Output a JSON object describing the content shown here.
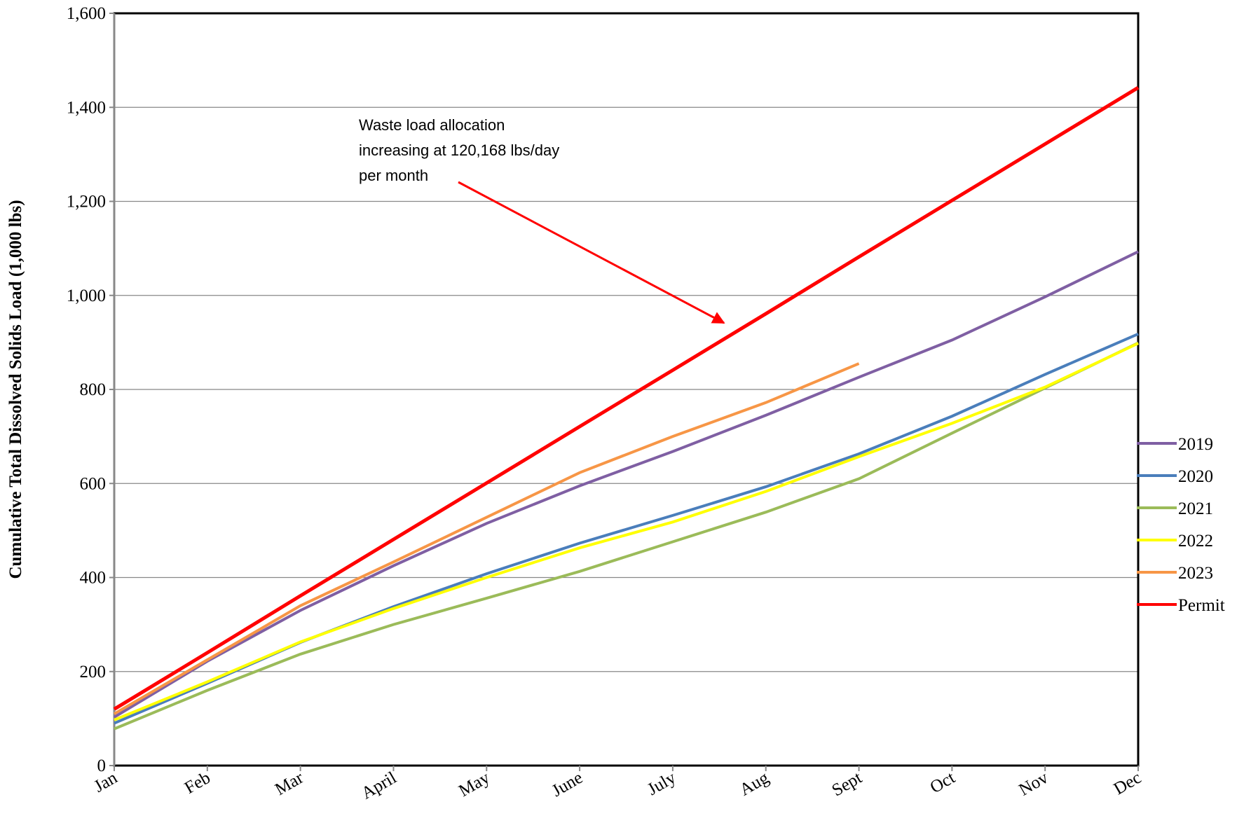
{
  "chart_data": {
    "type": "line",
    "y_label": "Cumulative Total Dissolved Solids Load (1,000 lbs)",
    "annotation": [
      "Waste load allocation",
      "increasing at 120,168 lbs/day",
      "per month"
    ],
    "categories": [
      "Jan",
      "Feb",
      "Mar",
      "April",
      "May",
      "June",
      "July",
      "Aug",
      "Sept",
      "Oct",
      "Nov",
      "Dec"
    ],
    "ylim": [
      0,
      1600
    ],
    "yticks": [
      0,
      200,
      400,
      600,
      800,
      {
        "value": 1000,
        "label": "1,000"
      },
      {
        "value": 1200,
        "label": "1,200"
      },
      {
        "value": 1400,
        "label": "1,400"
      },
      {
        "value": 1600,
        "label": "1,600"
      }
    ],
    "grid": true,
    "legend": "right",
    "series": [
      {
        "name": "2019",
        "color": "#7f5fa3",
        "values": [
          103,
          222,
          330,
          425,
          515,
          595,
          668,
          745,
          826,
          905,
          997,
          1093
        ]
      },
      {
        "name": "2020",
        "color": "#4a7ebb",
        "values": [
          90,
          175,
          262,
          338,
          408,
          473,
          532,
          593,
          663,
          743,
          832,
          918
        ]
      },
      {
        "name": "2021",
        "color": "#9bbb59",
        "values": [
          78,
          160,
          237,
          300,
          356,
          413,
          476,
          539,
          610,
          707,
          803,
          899
        ]
      },
      {
        "name": "2022",
        "color": "#ffff00",
        "values": [
          97,
          178,
          263,
          334,
          400,
          463,
          518,
          583,
          657,
          728,
          805,
          898
        ]
      },
      {
        "name": "2023",
        "color": "#f79646",
        "values": [
          110,
          225,
          340,
          433,
          528,
          623,
          700,
          772,
          855,
          null,
          null,
          null
        ]
      },
      {
        "name": "Permit",
        "color": "#ff0000",
        "values": [
          120,
          240,
          361,
          481,
          601,
          721,
          841,
          961,
          1082,
          1202,
          1322,
          1442
        ]
      }
    ]
  }
}
